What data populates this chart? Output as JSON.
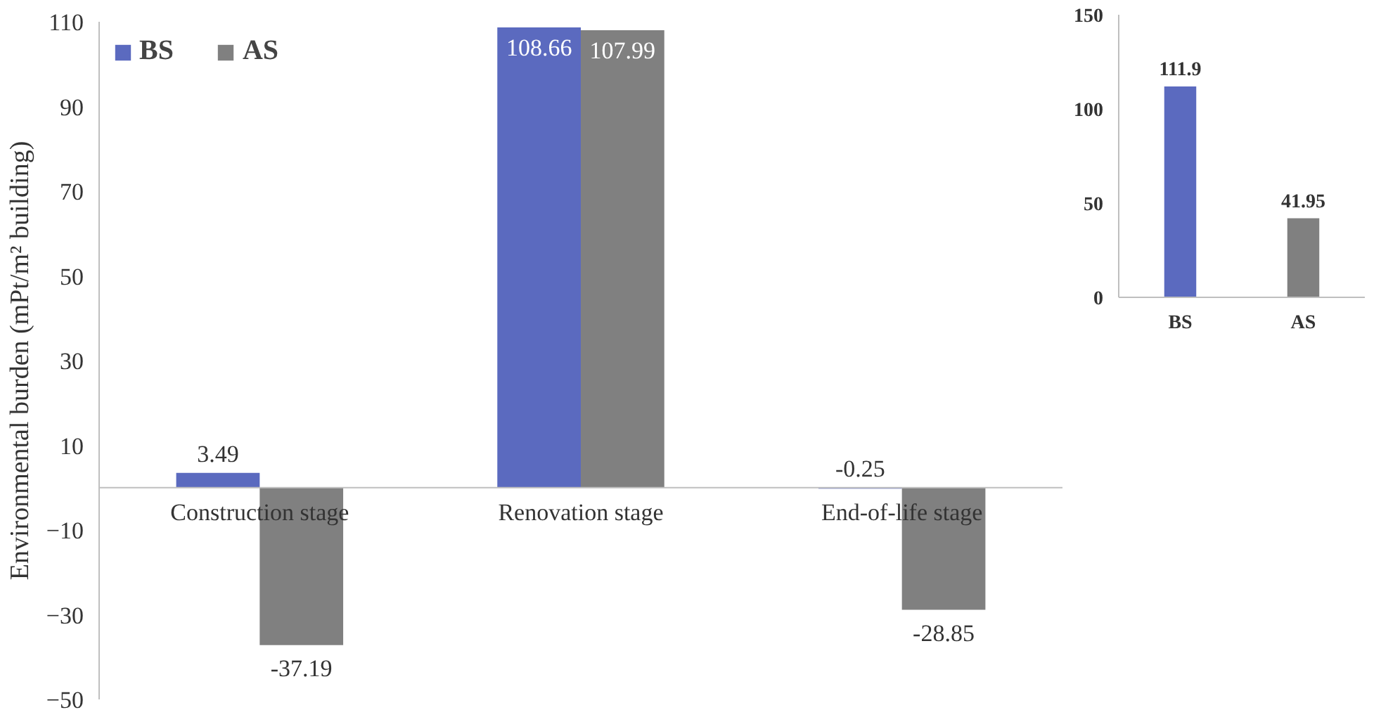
{
  "chart_data": [
    {
      "type": "bar",
      "ylabel": "Environmental burden (mPt/m² building)",
      "categories": [
        "Construction stage",
        "Renovation stage",
        "End-of-life stage"
      ],
      "series": [
        {
          "name": "BS",
          "color": "#5b6abf",
          "values": [
            3.49,
            108.66,
            -0.25
          ]
        },
        {
          "name": "AS",
          "color": "#808080",
          "values": [
            -37.19,
            107.99,
            -28.85
          ]
        }
      ],
      "ylim": [
        -50,
        110
      ],
      "yticks": [
        -50,
        -30,
        -10,
        10,
        30,
        50,
        70,
        90,
        110
      ],
      "data_labels": true,
      "legend": "top left",
      "grid": false
    },
    {
      "type": "bar",
      "categories": [
        "BS",
        "AS"
      ],
      "values": [
        111.9,
        41.95
      ],
      "colors": [
        "#5b6abf",
        "#808080"
      ],
      "ylim": [
        0,
        150
      ],
      "yticks": [
        0,
        50,
        100,
        150
      ],
      "data_labels": true,
      "grid": false
    }
  ]
}
